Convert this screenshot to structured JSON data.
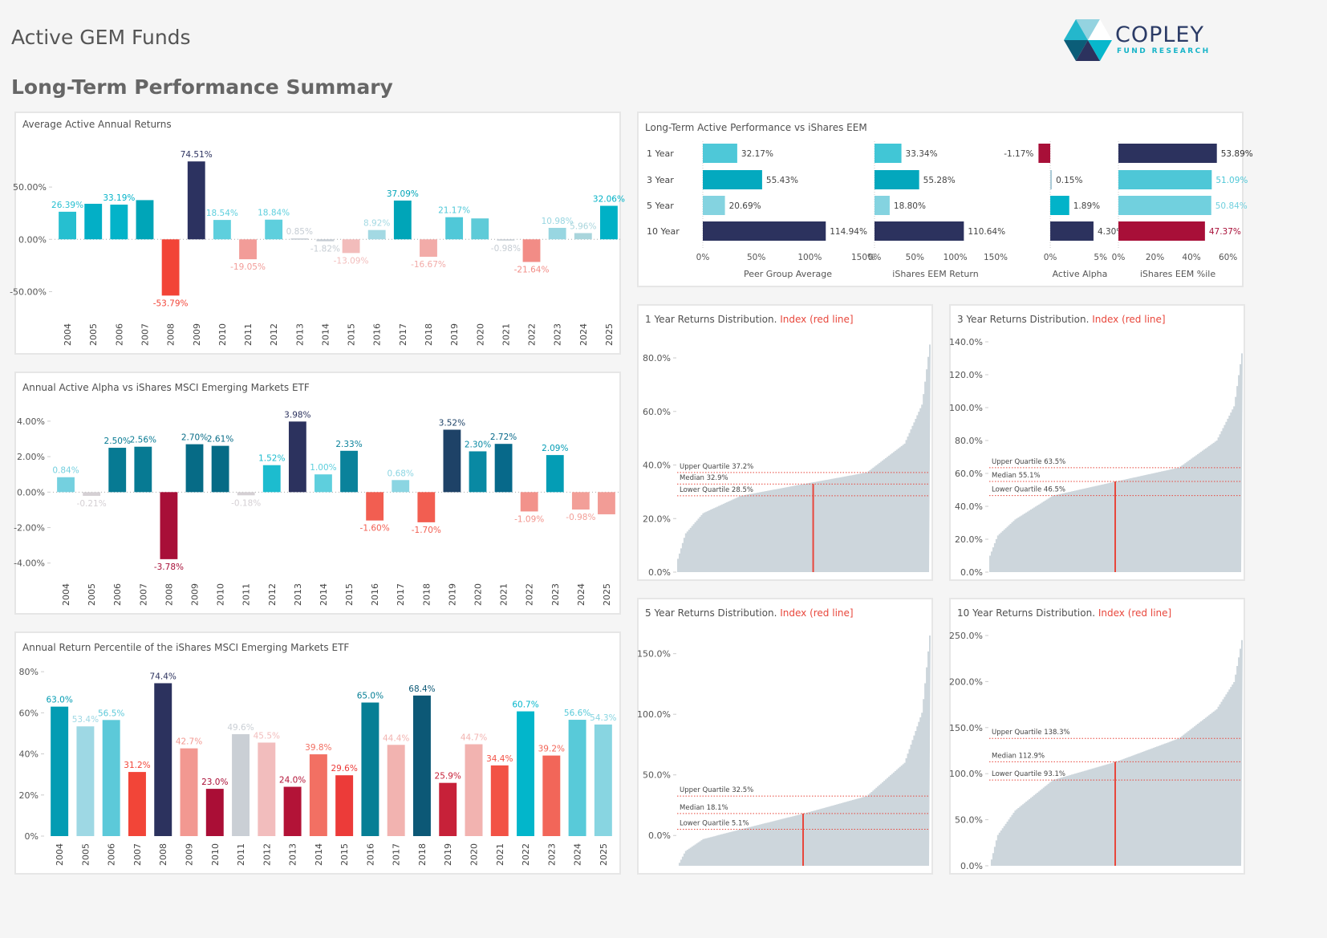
{
  "header": {
    "title": "Active GEM Funds",
    "subtitle": "Long-Term Performance Summary",
    "logo_brand": "COPLEY",
    "logo_sub": "FUND RESEARCH"
  },
  "chart_data": [
    {
      "id": "avg_active_returns",
      "type": "bar",
      "title": "Average Active Annual Returns",
      "categories": [
        "2004",
        "2005",
        "2006",
        "2007",
        "2008",
        "2009",
        "2010",
        "2011",
        "2012",
        "2013",
        "2014",
        "2015",
        "2016",
        "2017",
        "2018",
        "2019",
        "2020",
        "2021",
        "2022",
        "2023",
        "2024",
        "2025"
      ],
      "values": [
        26.39,
        34.0,
        33.19,
        37.5,
        -53.79,
        74.51,
        18.54,
        -19.05,
        18.84,
        0.85,
        -1.82,
        -13.09,
        8.92,
        37.09,
        -16.67,
        21.17,
        20.0,
        -0.98,
        -21.64,
        10.98,
        5.96,
        32.06
      ],
      "labels": [
        "26.39%",
        "",
        "33.19%",
        "",
        "-53.79%",
        "74.51%",
        "18.54%",
        "-19.05%",
        "18.84%",
        "0.85%",
        "-1.82%",
        "-13.09%",
        "8.92%",
        "37.09%",
        "-16.67%",
        "21.17%",
        "",
        "-0.98%",
        "-21.64%",
        "10.98%",
        "5.96%",
        "32.06%"
      ],
      "colors": [
        "#26bfd0",
        "#03afc6",
        "#03b3c9",
        "#00a5b8",
        "#f24437",
        "#2c3260",
        "#5ecfdd",
        "#f29c98",
        "#5ecfdd",
        "#c5ccd3",
        "#c5ccd3",
        "#f2bcbb",
        "#a3d9e3",
        "#00a5b8",
        "#f2aba8",
        "#50c8d8",
        "#5ecbd8",
        "#c5ccd3",
        "#f28c86",
        "#98d6e1",
        "#a9d5dc",
        "#00b1c6"
      ],
      "yticks": [
        -50,
        0,
        50
      ],
      "ytick_labels": [
        "-50.00%",
        "0.00%",
        "50.00%"
      ],
      "ylim": [
        -75,
        90
      ]
    },
    {
      "id": "active_alpha",
      "type": "bar",
      "title": "Annual Active Alpha vs iShares MSCI Emerging Markets ETF",
      "categories": [
        "2004",
        "2005",
        "2006",
        "2007",
        "2008",
        "2009",
        "2010",
        "2011",
        "2012",
        "2013",
        "2014",
        "2015",
        "2016",
        "2017",
        "2018",
        "2019",
        "2020",
        "2021",
        "2022",
        "2023",
        "2024",
        "2025"
      ],
      "values": [
        0.84,
        -0.21,
        2.5,
        2.56,
        -3.78,
        2.7,
        2.61,
        -0.18,
        1.52,
        3.98,
        1.0,
        2.33,
        -1.6,
        0.68,
        -1.7,
        3.52,
        2.3,
        2.72,
        -1.09,
        2.09,
        -0.98,
        -1.25
      ],
      "labels": [
        "0.84%",
        "-0.21%",
        "2.50%",
        "2.56%",
        "-3.78%",
        "2.70%",
        "2.61%",
        "-0.18%",
        "1.52%",
        "3.98%",
        "1.00%",
        "2.33%",
        "-1.60%",
        "0.68%",
        "-1.70%",
        "3.52%",
        "2.30%",
        "2.72%",
        "-1.09%",
        "2.09%",
        "-0.98%",
        ""
      ],
      "colors": [
        "#74d0df",
        "#d5d0d4",
        "#077a93",
        "#077a93",
        "#a80f38",
        "#066b86",
        "#066b86",
        "#d5d0d4",
        "#1cbccf",
        "#2c325e",
        "#5ecfdd",
        "#0a829b",
        "#f25e51",
        "#8bd5e2",
        "#f25e51",
        "#1e4267",
        "#0989a3",
        "#07698a",
        "#f2928b",
        "#049db5",
        "#f29f98",
        "#f29c96"
      ],
      "yticks": [
        -4,
        -2,
        0,
        2,
        4
      ],
      "ytick_labels": [
        "-4.00%",
        "-2.00%",
        "0.00%",
        "2.00%",
        "4.00%"
      ],
      "ylim": [
        -4.6,
        4.9
      ]
    },
    {
      "id": "eem_percentile",
      "type": "bar",
      "title": "Annual Return Percentile of the iShares MSCI Emerging Markets ETF",
      "categories": [
        "2004",
        "2005",
        "2006",
        "2007",
        "2008",
        "2009",
        "2010",
        "2011",
        "2012",
        "2013",
        "2014",
        "2015",
        "2016",
        "2017",
        "2018",
        "2019",
        "2020",
        "2021",
        "2022",
        "2023",
        "2024",
        "2025"
      ],
      "values": [
        63.0,
        53.4,
        56.5,
        31.2,
        74.4,
        42.7,
        23.0,
        49.6,
        45.5,
        24.0,
        39.8,
        29.6,
        65.0,
        44.4,
        68.4,
        25.9,
        44.7,
        34.4,
        60.7,
        39.2,
        56.6,
        54.3
      ],
      "labels": [
        "63.0%",
        "53.4%",
        "56.5%",
        "31.2%",
        "74.4%",
        "42.7%",
        "23.0%",
        "49.6%",
        "45.5%",
        "24.0%",
        "39.8%",
        "29.6%",
        "65.0%",
        "44.4%",
        "68.4%",
        "25.9%",
        "44.7%",
        "34.4%",
        "60.7%",
        "39.2%",
        "56.6%",
        "54.3%"
      ],
      "colors": [
        "#039cb3",
        "#9ed8e4",
        "#5cc9d9",
        "#f24538",
        "#2c325e",
        "#f29891",
        "#aa0e36",
        "#cacfd5",
        "#f2bdbd",
        "#b31337",
        "#f27063",
        "#ec3b39",
        "#067f95",
        "#f2b3b0",
        "#0c5876",
        "#c72139",
        "#f2b3b0",
        "#f25245",
        "#02b6cb",
        "#f26659",
        "#58cad9",
        "#88d5e1"
      ],
      "yticks": [
        0,
        20,
        40,
        60,
        80
      ],
      "ytick_labels": [
        "0%",
        "20%",
        "40%",
        "60%",
        "80%"
      ],
      "ylim": [
        0,
        82
      ]
    },
    {
      "id": "long_term",
      "type": "bar",
      "title": "Long-Term Active Performance vs iShares EEM",
      "categories": [
        "1 Year",
        "3 Year",
        "5 Year",
        "10 Year"
      ],
      "series": [
        {
          "name": "Peer Group Average",
          "values": [
            32.17,
            55.43,
            20.69,
            114.94
          ],
          "labels": [
            "32.17%",
            "55.43%",
            "20.69%",
            "114.94%"
          ],
          "colors": [
            "#4ec8d8",
            "#03a9bf",
            "#84d3e0",
            "#2c325e"
          ],
          "ticks": [
            "0%",
            "50%",
            "100%",
            "150%"
          ],
          "tick_values": [
            0,
            50,
            100,
            150
          ],
          "xlim": [
            0,
            150
          ]
        },
        {
          "name": "iShares EEM Return",
          "values": [
            33.34,
            55.28,
            18.8,
            110.64
          ],
          "labels": [
            "33.34%",
            "55.28%",
            "18.80%",
            "110.64%"
          ],
          "colors": [
            "#41c6d6",
            "#03a7bd",
            "#84d3e0",
            "#2c325e"
          ],
          "ticks": [
            "0%",
            "50%",
            "100%",
            "150%"
          ],
          "tick_values": [
            0,
            50,
            100,
            150
          ],
          "xlim": [
            0,
            150
          ]
        },
        {
          "name": "Active Alpha",
          "values": [
            -1.17,
            0.15,
            1.89,
            4.3
          ],
          "labels": [
            "-1.17%",
            "0.15%",
            "1.89%",
            "4.30%"
          ],
          "colors": [
            "#a80f38",
            "#a9c9d6",
            "#02b3c9",
            "#2c325e"
          ],
          "ticks": [
            "0%",
            "5%"
          ],
          "tick_values": [
            0,
            5
          ],
          "xlim": [
            -2,
            5.5
          ]
        },
        {
          "name": "iShares EEM %ile",
          "values": [
            53.89,
            51.09,
            50.84,
            47.37
          ],
          "labels": [
            "53.89%",
            "51.09%",
            "50.84%",
            "47.37%"
          ],
          "colors": [
            "#2c325e",
            "#4ec7d7",
            "#71d0de",
            "#a80f38"
          ],
          "label_colors": [
            "#333333",
            "#4ec7d7",
            "#71d0de",
            "#a80f38"
          ],
          "ticks": [
            "0%",
            "20%",
            "40%",
            "60%"
          ],
          "tick_values": [
            0,
            20,
            40,
            60
          ],
          "xlim": [
            0,
            65
          ]
        }
      ]
    },
    {
      "id": "dist_1y",
      "type": "area",
      "title": "1 Year Returns Distribution.",
      "title_red": "Index (red line]",
      "yticks": [
        0,
        20,
        40,
        60,
        80
      ],
      "ytick_labels": [
        "0.0%",
        "20.0%",
        "40.0%",
        "60.0%",
        "80.0%"
      ],
      "ylim": [
        0,
        86
      ],
      "min": 5,
      "max": 85,
      "p10": 22,
      "p90": 48,
      "upper_quartile": 37.2,
      "median": 32.9,
      "lower_quartile": 28.5,
      "uq_label": "Upper Quartile 37.2%",
      "med_label": "Median 32.9%",
      "lq_label": "Lower Quartile 28.5%",
      "index_percentile": 0.54
    },
    {
      "id": "dist_3y",
      "type": "area",
      "title": "3 Year Returns Distribution.",
      "title_red": "Index (red line]",
      "yticks": [
        0,
        20,
        40,
        60,
        80,
        100,
        120,
        140
      ],
      "ytick_labels": [
        "0.0%",
        "20.0%",
        "40.0%",
        "60.0%",
        "80.0%",
        "100.0%",
        "120.0%",
        "140.0%"
      ],
      "ylim": [
        0,
        140
      ],
      "min": 10,
      "max": 133,
      "p10": 32,
      "p90": 80,
      "upper_quartile": 63.5,
      "median": 55.1,
      "lower_quartile": 46.5,
      "uq_label": "Upper Quartile 63.5%",
      "med_label": "Median 55.1%",
      "lq_label": "Lower Quartile 46.5%",
      "index_percentile": 0.5
    },
    {
      "id": "dist_5y",
      "type": "area",
      "title": "5 Year Returns Distribution.",
      "title_red": "Index (red line]",
      "yticks": [
        0,
        50,
        100,
        150
      ],
      "ytick_labels": [
        "0.0%",
        "50.0%",
        "100.0%",
        "150.0%"
      ],
      "ylim": [
        -25,
        165
      ],
      "min": -25,
      "max": 165,
      "p10": -3,
      "p90": 60,
      "upper_quartile": 32.5,
      "median": 18.1,
      "lower_quartile": 5.1,
      "uq_label": "Upper Quartile 32.5%",
      "med_label": "Median 18.1%",
      "lq_label": "Lower Quartile 5.1%",
      "index_percentile": 0.5
    },
    {
      "id": "dist_10y",
      "type": "area",
      "title": "10 Year Returns Distribution.",
      "title_red": "Index (red line]",
      "yticks": [
        0,
        50,
        100,
        150,
        200,
        250
      ],
      "ytick_labels": [
        "0.0%",
        "50.0%",
        "100.0%",
        "150.0%",
        "200.0%",
        "250.0%"
      ],
      "ylim": [
        0,
        250
      ],
      "min": 0,
      "max": 245,
      "p10": 60,
      "p90": 170,
      "upper_quartile": 138.3,
      "median": 112.9,
      "lower_quartile": 93.1,
      "uq_label": "Upper Quartile 138.3%",
      "med_label": "Median 112.9%",
      "lq_label": "Lower Quartile 93.1%",
      "index_percentile": 0.5
    }
  ]
}
